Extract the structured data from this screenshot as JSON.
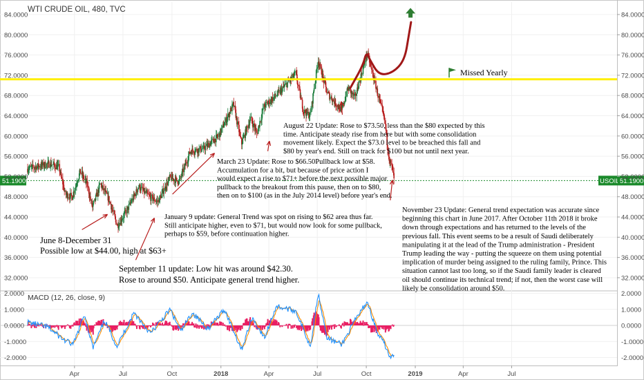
{
  "chart_data": [
    {
      "type": "candlestick",
      "title": "WTI CRUDE OIL, 480, TVC",
      "x_tick_labels": [
        "Apr",
        "Jul",
        "Oct",
        "2018",
        "Apr",
        "Jul",
        "Oct",
        "2019",
        "Apr",
        "Jul"
      ],
      "y_tick_labels": [
        "84.0000",
        "80.0000",
        "76.0000",
        "72.0000",
        "68.0000",
        "64.0000",
        "60.0000",
        "56.0000",
        "52.0000",
        "48.0000",
        "44.0000",
        "40.0000",
        "36.0000",
        "32.0000"
      ],
      "ylim": [
        30,
        86
      ],
      "price_path": [
        [
          "2017-01-03",
          53.5
        ],
        [
          "2017-01-20",
          54.0
        ],
        [
          "2017-02-15",
          54.5
        ],
        [
          "2017-03-03",
          53.8
        ],
        [
          "2017-03-15",
          48.5
        ],
        [
          "2017-03-28",
          48.0
        ],
        [
          "2017-04-12",
          53.0
        ],
        [
          "2017-04-25",
          50.5
        ],
        [
          "2017-05-05",
          45.8
        ],
        [
          "2017-05-20",
          50.5
        ],
        [
          "2017-06-05",
          47.5
        ],
        [
          "2017-06-21",
          42.3
        ],
        [
          "2017-07-10",
          45.5
        ],
        [
          "2017-07-31",
          50.0
        ],
        [
          "2017-08-20",
          48.0
        ],
        [
          "2017-09-05",
          47.0
        ],
        [
          "2017-09-28",
          51.8
        ],
        [
          "2017-10-15",
          51.0
        ],
        [
          "2017-11-05",
          57.0
        ],
        [
          "2017-11-30",
          57.5
        ],
        [
          "2017-12-28",
          60.0
        ],
        [
          "2018-01-25",
          66.3
        ],
        [
          "2018-02-09",
          58.5
        ],
        [
          "2018-02-26",
          63.5
        ],
        [
          "2018-03-10",
          60.5
        ],
        [
          "2018-03-23",
          65.8
        ],
        [
          "2018-04-20",
          68.5
        ],
        [
          "2018-05-22",
          72.3
        ],
        [
          "2018-06-05",
          65.0
        ],
        [
          "2018-06-18",
          64.0
        ],
        [
          "2018-07-03",
          75.0
        ],
        [
          "2018-07-20",
          68.5
        ],
        [
          "2018-08-16",
          65.0
        ],
        [
          "2018-08-28",
          69.5
        ],
        [
          "2018-09-10",
          67.5
        ],
        [
          "2018-10-03",
          76.4
        ],
        [
          "2018-10-20",
          69.5
        ],
        [
          "2018-11-05",
          63.0
        ],
        [
          "2018-11-13",
          55.7
        ],
        [
          "2018-11-20",
          53.2
        ],
        [
          "2018-11-23",
          51.19
        ]
      ],
      "current_price": 51.19,
      "current_price_label": "51.1900",
      "symbol_badge": "USOIL",
      "horizontal_line": 71.2,
      "horizontal_line_color": "#ffef00",
      "flag_label": "Missed Yearly",
      "forecast_path": [
        [
          "2018-09-01",
          69.5
        ],
        [
          "2018-09-25",
          74.0
        ],
        [
          "2018-10-01",
          76.6
        ],
        [
          "2018-10-08",
          75.0
        ],
        [
          "2018-10-25",
          72.0
        ],
        [
          "2018-11-20",
          72.5
        ],
        [
          "2018-12-12",
          75.0
        ],
        [
          "2018-12-20",
          80.0
        ],
        [
          "2018-12-24",
          82.5
        ]
      ],
      "forecast_color": "#a01818",
      "arrow_color": "#2e7d32"
    },
    {
      "type": "line",
      "title": "MACD (12, 26, close, 9)",
      "y_tick_labels": [
        "2.0000",
        "1.0000",
        "0.0000",
        "-1.0000",
        "-2.0000"
      ],
      "ylim": [
        -2.5,
        2.35
      ],
      "macd_path": [
        [
          "2017-01-03",
          0.2
        ],
        [
          "2017-02-10",
          -0.1
        ],
        [
          "2017-03-12",
          -0.9
        ],
        [
          "2017-03-30",
          -1.2
        ],
        [
          "2017-04-20",
          0.7
        ],
        [
          "2017-05-06",
          -1.4
        ],
        [
          "2017-05-28",
          0.3
        ],
        [
          "2017-06-20",
          -1.3
        ],
        [
          "2017-07-22",
          0.8
        ],
        [
          "2017-08-22",
          -0.5
        ],
        [
          "2017-09-28",
          1.0
        ],
        [
          "2017-10-18",
          -0.4
        ],
        [
          "2017-11-08",
          0.8
        ],
        [
          "2017-12-08",
          -0.2
        ],
        [
          "2018-01-08",
          1.0
        ],
        [
          "2018-02-09",
          -1.5
        ],
        [
          "2018-03-01",
          0.5
        ],
        [
          "2018-03-24",
          -0.8
        ],
        [
          "2018-04-15",
          1.2
        ],
        [
          "2018-05-22",
          0.9
        ],
        [
          "2018-06-18",
          -1.3
        ],
        [
          "2018-07-03",
          2.0
        ],
        [
          "2018-07-20",
          -0.8
        ],
        [
          "2018-08-16",
          -1.2
        ],
        [
          "2018-09-10",
          0.3
        ],
        [
          "2018-10-03",
          1.5
        ],
        [
          "2018-10-22",
          -0.5
        ],
        [
          "2018-11-05",
          -1.2
        ],
        [
          "2018-11-15",
          -2.0
        ],
        [
          "2018-11-23",
          -1.9
        ]
      ],
      "signal_color": "#ff8c00",
      "macd_color": "#1e90ff",
      "histogram_color": "#e91e63"
    }
  ],
  "annotations": [
    {
      "lines": [
        "June 8-December 31",
        "Possible low at $44.00, high at $63+"
      ],
      "size": 12.5
    },
    {
      "lines": [
        "September 11 update: Low hit was around $42.30.",
        "Rose to around $50.  Anticipate general trend higher."
      ],
      "size": 12.5
    },
    {
      "lines": [
        "January 9 update:  General Trend was spot on rising to $62 area thus far.",
        "Still anticipate higher, even to $71, but would now look for some pullback,",
        " perhaps to $59, before continuation higher."
      ],
      "size": 10.5
    },
    {
      "lines": [
        "March 23 Update:  Rose to $66.50Pullback low at $58.",
        "Accumulation for a bit, but because of price action I",
        "would expect a rise to $71+ before the next possible major",
        "pullback to the breakout from this pause, then on to $80,",
        "then on to $100 (as in the July 2014 level) before year's end."
      ],
      "size": 10.5
    },
    {
      "lines": [
        "August 22 Update: Rose to $73.50, less than the $80 expected by this",
        "time. Anticipate steady rise from here but with some consolidation",
        "movement likely. Expect the $73.0 level to be breached this fall and",
        "$80 by year's end.  Still on track for $100 but not until next year."
      ],
      "size": 10.5
    },
    {
      "lines": [
        "November 23 Update: General trend expectation was accurate since",
        "beginning this chart in June 2017. After October 11th 2018 it broke",
        "down through expectations and has returned to the levels of the",
        "previous fall. This event seems to be a result of Saudi deliberately",
        "manipulating it at the lead of the Trump administration - President",
        "Trump leading the way - putting the squeeze on them using potential",
        "implication of murder being assigned to the ruling family, Prince. This",
        "situation cannot last too long, so if the Saudi family leader is cleared",
        "oil should continue its technical trend; if not, then the worst case will",
        "likely be consolidation around $50."
      ],
      "size": 10.5
    }
  ],
  "annotation_arrows": [
    {
      "from": [
        "2017-04-15",
        41.5
      ],
      "to": [
        "2017-06-02",
        44.5
      ]
    },
    {
      "from": [
        "2017-07-25",
        35.5
      ],
      "to": [
        "2017-08-29",
        43.8
      ]
    },
    {
      "from": [
        "2017-10-02",
        48.5
      ],
      "to": [
        "2017-12-20",
        56.6
      ]
    },
    {
      "from": [
        "2018-03-30",
        57.0
      ],
      "to": [
        "2018-04-02",
        59.0
      ]
    },
    {
      "from": [
        "2018-08-17",
        64.2
      ],
      "to": [
        "2018-08-15",
        66.8
      ]
    },
    {
      "from": [
        "2018-11-15",
        47.3
      ],
      "to": [
        "2018-11-19",
        51.3
      ]
    }
  ]
}
